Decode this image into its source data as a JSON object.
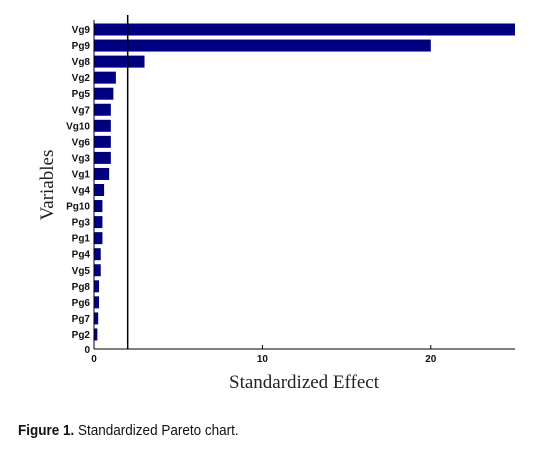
{
  "chart_data": {
    "type": "bar",
    "orientation": "horizontal",
    "categories": [
      "Vg9",
      "Pg9",
      "Vg8",
      "Vg2",
      "Pg5",
      "Vg7",
      "Vg10",
      "Vg6",
      "Vg3",
      "Vg1",
      "Vg4",
      "Pg10",
      "Pg3",
      "Pg1",
      "Pg4",
      "Vg5",
      "Pg8",
      "Pg6",
      "Pg7",
      "Pg2"
    ],
    "values": [
      25.0,
      20.0,
      3.0,
      1.3,
      1.15,
      1.0,
      1.0,
      1.0,
      1.0,
      0.9,
      0.6,
      0.5,
      0.5,
      0.5,
      0.4,
      0.4,
      0.3,
      0.3,
      0.25,
      0.2
    ],
    "xlabel": "Standardized Effect",
    "ylabel": "Variables",
    "xlim": [
      0,
      25
    ],
    "xticks": [
      "0",
      "10",
      "20"
    ],
    "y_zero_tick": "0",
    "reference_line": 2.0,
    "bar_color": "#000080",
    "grid": false
  },
  "caption": {
    "label": "Figure 1.",
    "text": " Standardized Pareto chart."
  }
}
